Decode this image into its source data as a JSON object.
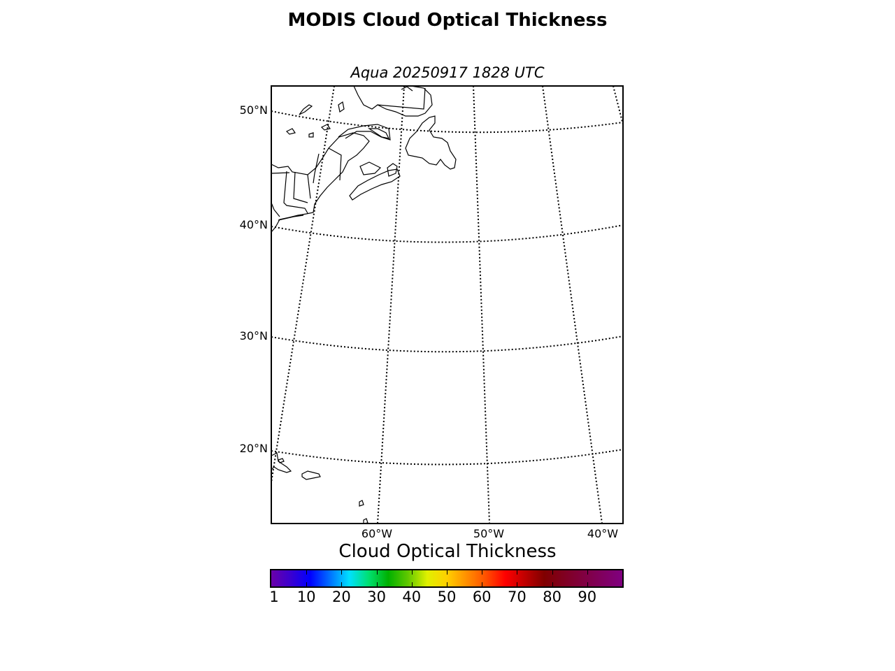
{
  "figure": {
    "title": "MODIS Cloud Optical Thickness",
    "subtitle": "Aqua 20250917 1828 UTC"
  },
  "map": {
    "projection": "lambert-conformal-like",
    "extent_note": "North Atlantic / US East Coast",
    "latitude_labels": [
      "50°N",
      "40°N",
      "30°N",
      "20°N"
    ],
    "longitude_labels": [
      "60°W",
      "50°W",
      "40°W"
    ],
    "graticule_style": "dotted",
    "coastline_color": "#000000"
  },
  "colorbar": {
    "title": "Cloud Optical Thickness",
    "tick_labels": [
      "1",
      "10",
      "20",
      "30",
      "40",
      "50",
      "60",
      "70",
      "80",
      "90"
    ],
    "tick_values": [
      1,
      10,
      20,
      30,
      40,
      50,
      60,
      70,
      80,
      90
    ],
    "range": [
      0,
      100
    ],
    "colors": [
      "#6a00a8",
      "#3a00d0",
      "#0000ff",
      "#0070ff",
      "#00e0ff",
      "#00e070",
      "#00b000",
      "#60c800",
      "#e0f000",
      "#ffd000",
      "#ff9000",
      "#ff5000",
      "#ff0000",
      "#c00000",
      "#800000",
      "#800020",
      "#800040",
      "#800060",
      "#800080"
    ]
  }
}
